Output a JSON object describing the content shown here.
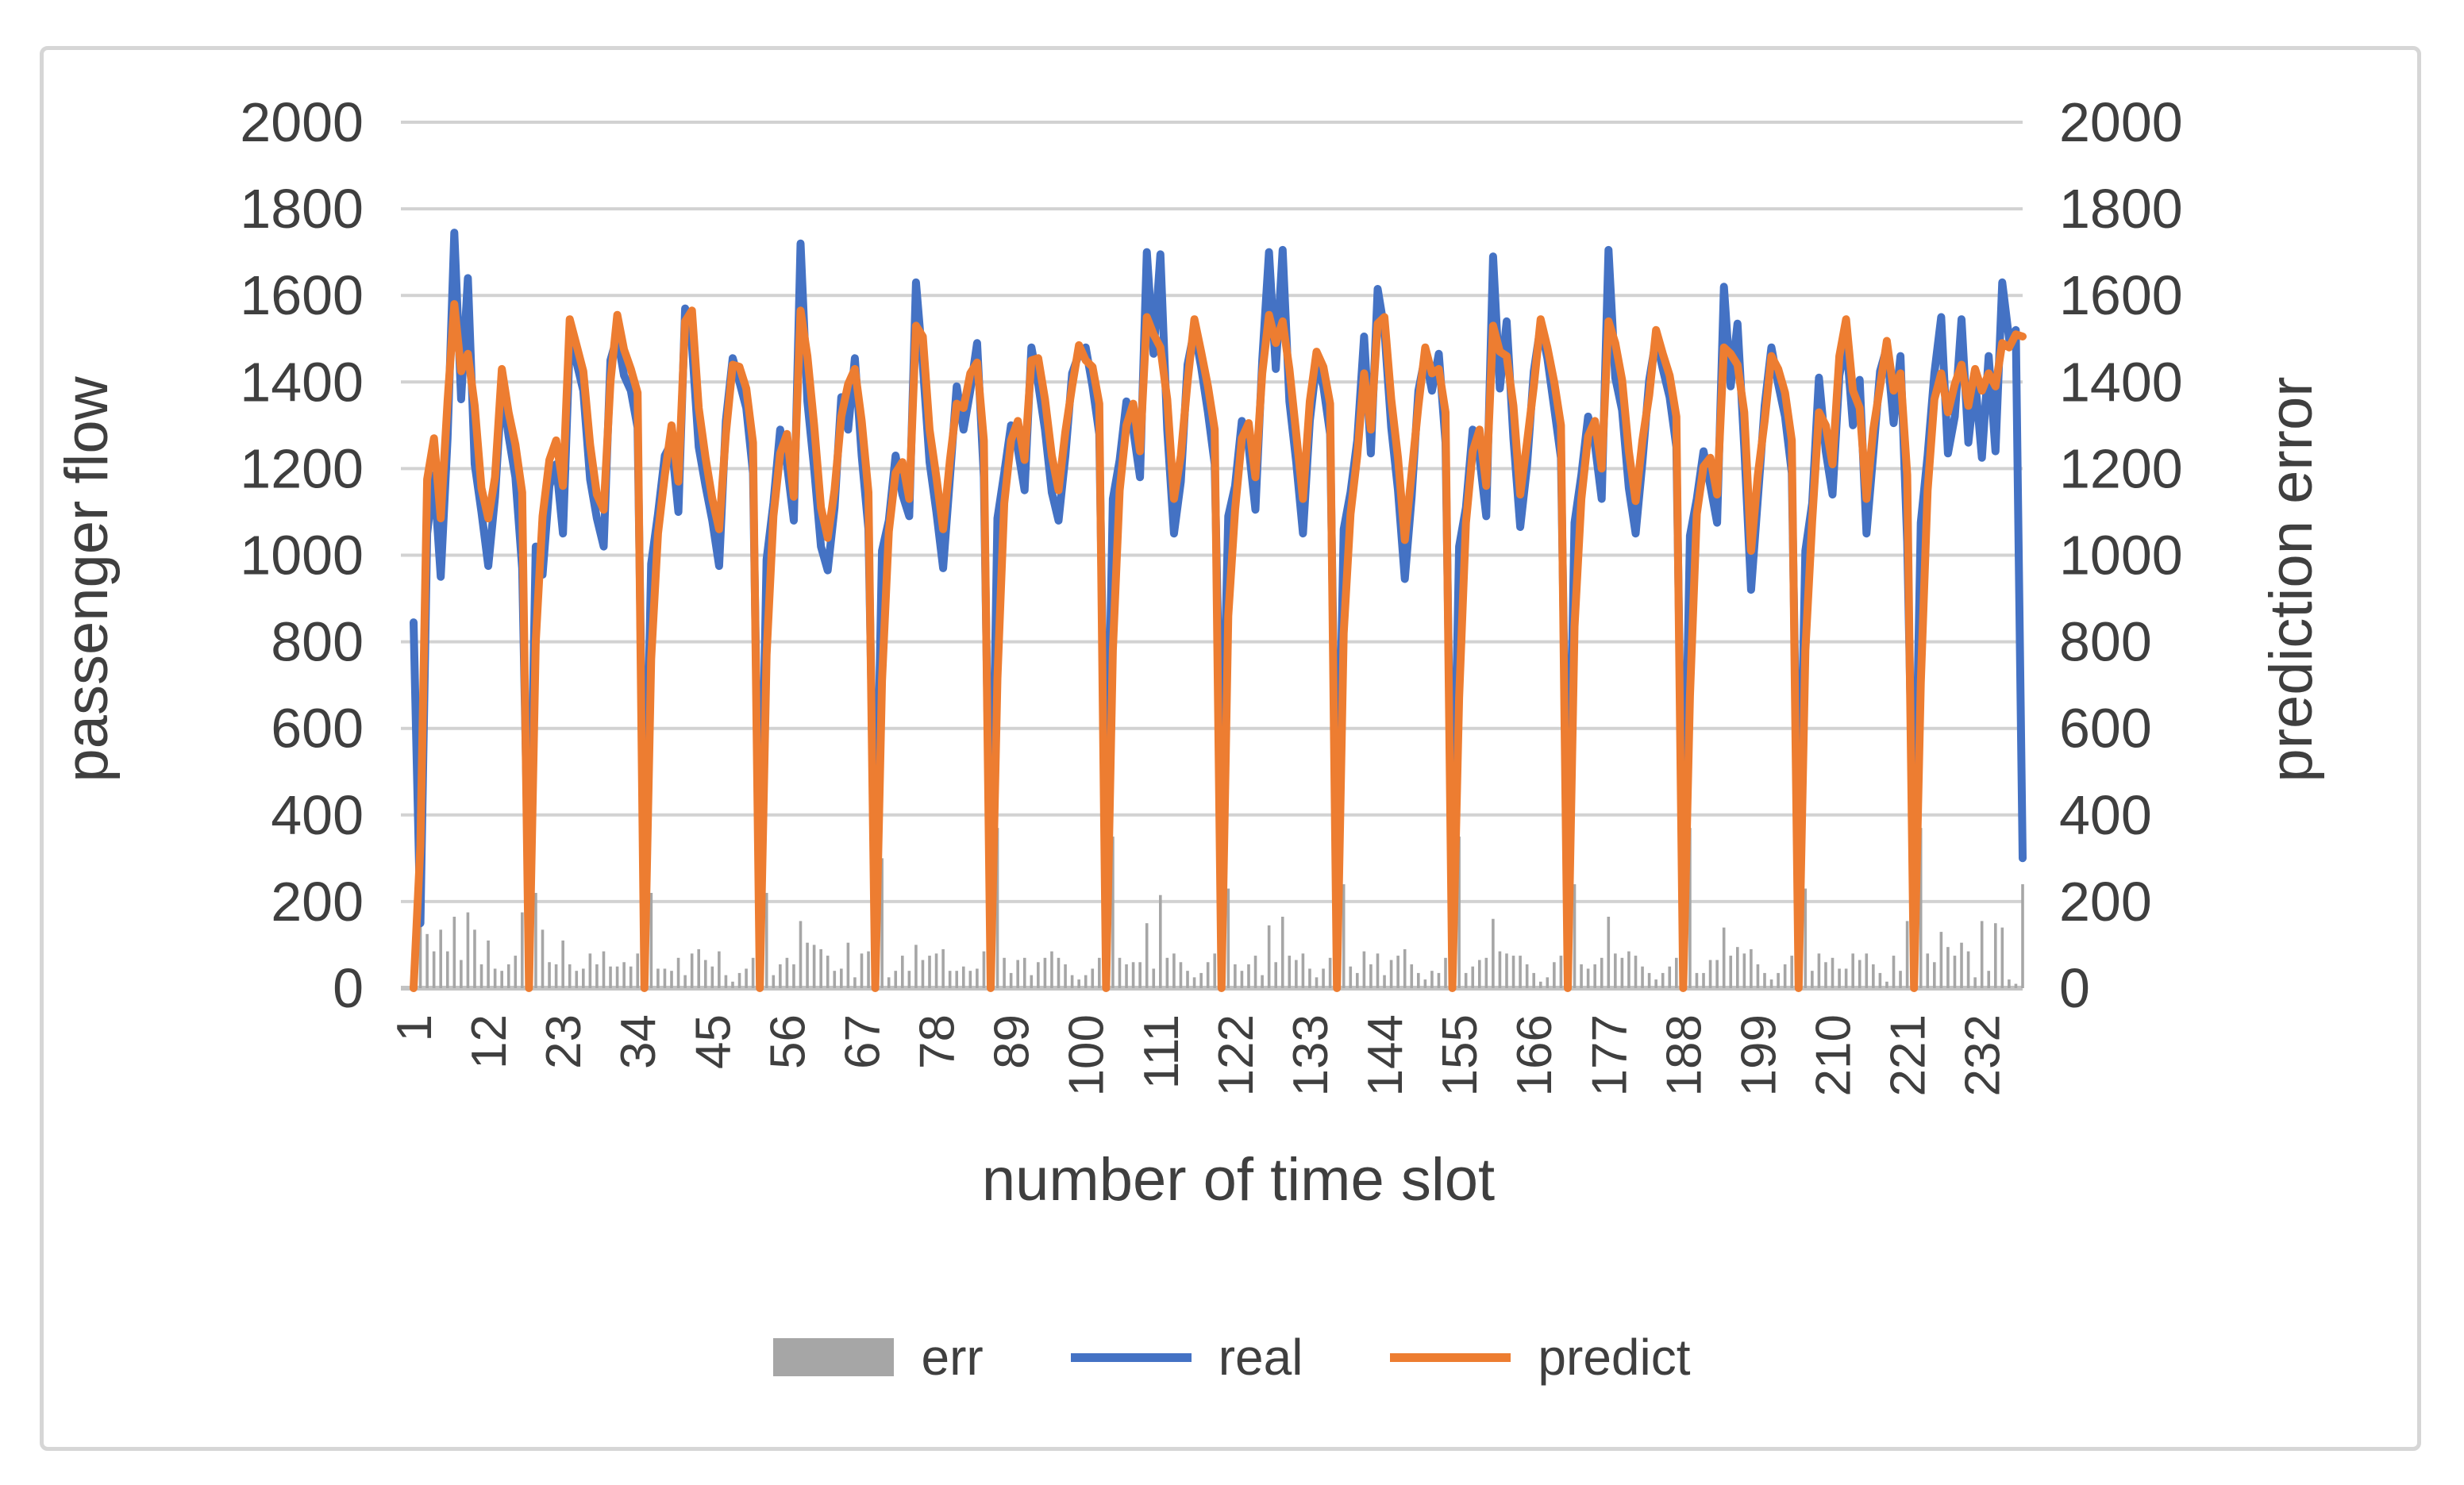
{
  "layout_colors": {
    "gridline": "#d2d2d2",
    "baseline": "#c3c3c3",
    "frame_border": "#d6d6d6",
    "text": "#3f3f3f"
  },
  "chart_data": {
    "type": "bar+line combo, dual axis",
    "title": "",
    "xlabel": "number of time slot",
    "ylabel_left": "passenger flow",
    "ylabel_right": "prediction error",
    "ylim": [
      0,
      2000
    ],
    "y_ticks": [
      0,
      200,
      400,
      600,
      800,
      1000,
      1200,
      1400,
      1600,
      1800,
      2000
    ],
    "grid": "horizontal gridlines on",
    "legend_position": "bottom center",
    "x_slot_count": 238,
    "x_tick_labels": [
      "1",
      "12",
      "23",
      "34",
      "45",
      "56",
      "67",
      "78",
      "89",
      "100",
      "111",
      "122",
      "133",
      "144",
      "155",
      "166",
      "177",
      "188",
      "199",
      "210",
      "221",
      "232"
    ],
    "x_tick_slot_interval": 11,
    "series": [
      {
        "name": "err",
        "type": "bar",
        "axis": "right",
        "color": "#a6a6a6",
        "values": [
          40,
          180,
          125,
          85,
          135,
          85,
          165,
          65,
          175,
          135,
          55,
          110,
          45,
          40,
          55,
          75,
          175,
          170,
          220,
          135,
          60,
          55,
          110,
          55,
          40,
          45,
          80,
          55,
          85,
          50,
          50,
          60,
          50,
          80,
          225,
          220,
          45,
          45,
          40,
          70,
          30,
          80,
          90,
          65,
          50,
          85,
          30,
          15,
          35,
          45,
          70,
          185,
          220,
          30,
          55,
          70,
          55,
          155,
          105,
          100,
          90,
          75,
          40,
          45,
          105,
          25,
          80,
          85,
          205,
          300,
          25,
          40,
          75,
          40,
          100,
          65,
          75,
          80,
          90,
          40,
          40,
          50,
          40,
          45,
          85,
          160,
          370,
          70,
          35,
          65,
          70,
          30,
          60,
          70,
          85,
          70,
          55,
          30,
          20,
          30,
          45,
          70,
          300,
          350,
          70,
          55,
          60,
          60,
          150,
          45,
          215,
          70,
          80,
          60,
          40,
          25,
          35,
          60,
          80,
          430,
          230,
          55,
          40,
          55,
          75,
          30,
          145,
          60,
          165,
          75,
          65,
          80,
          45,
          25,
          45,
          70,
          250,
          240,
          50,
          35,
          85,
          55,
          80,
          30,
          65,
          75,
          90,
          55,
          35,
          20,
          40,
          35,
          70,
          195,
          350,
          35,
          50,
          65,
          70,
          160,
          85,
          80,
          75,
          75,
          55,
          35,
          15,
          25,
          60,
          75,
          240,
          240,
          55,
          45,
          55,
          70,
          165,
          80,
          70,
          85,
          75,
          50,
          35,
          20,
          35,
          50,
          70,
          210,
          370,
          35,
          35,
          65,
          65,
          140,
          75,
          95,
          80,
          90,
          55,
          35,
          20,
          35,
          55,
          75,
          230,
          230,
          40,
          80,
          60,
          70,
          45,
          45,
          80,
          65,
          80,
          55,
          35,
          15,
          75,
          40,
          155,
          250,
          370,
          80,
          60,
          130,
          95,
          75,
          105,
          85,
          25,
          155,
          40,
          150,
          140,
          20,
          10,
          240
        ]
      },
      {
        "name": "real",
        "type": "line",
        "axis": "left",
        "color": "#4472c4",
        "values": [
          845,
          150,
          1050,
          1185,
          950,
          1270,
          1745,
          1360,
          1640,
          1210,
          1100,
          975,
          1135,
          1390,
          1275,
          1180,
          970,
          170,
          1020,
          955,
          1160,
          1210,
          1050,
          1490,
          1445,
          1380,
          1175,
          1085,
          1020,
          1450,
          1505,
          1415,
          1380,
          1295,
          225,
          980,
          1095,
          1230,
          1260,
          1100,
          1570,
          1485,
          1250,
          1160,
          1080,
          975,
          1310,
          1455,
          1400,
          1340,
          1190,
          185,
          990,
          1120,
          1290,
          1210,
          1080,
          1720,
          1355,
          1200,
          1020,
          965,
          1110,
          1365,
          1290,
          1455,
          1230,
          1060,
          205,
          1010,
          1080,
          1230,
          1140,
          1090,
          1630,
          1440,
          1215,
          1100,
          970,
          1180,
          1390,
          1290,
          1380,
          1490,
          1180,
          160,
          1085,
          1190,
          1300,
          1245,
          1150,
          1480,
          1395,
          1290,
          1145,
          1080,
          1230,
          1420,
          1465,
          1480,
          1390,
          1280,
          300,
          1130,
          1220,
          1355,
          1290,
          1180,
          1700,
          1465,
          1695,
          1290,
          1050,
          1170,
          1440,
          1520,
          1435,
          1330,
          1210,
          430,
          1090,
          1160,
          1310,
          1250,
          1105,
          1450,
          1700,
          1430,
          1705,
          1355,
          1215,
          1050,
          1310,
          1445,
          1390,
          1280,
          250,
          1060,
          1145,
          1265,
          1505,
          1235,
          1615,
          1520,
          1295,
          1150,
          945,
          1135,
          1380,
          1460,
          1380,
          1465,
          1260,
          195,
          1020,
          1110,
          1290,
          1225,
          1090,
          1690,
          1385,
          1540,
          1270,
          1065,
          1205,
          1425,
          1530,
          1455,
          1340,
          1225,
          240,
          1075,
          1185,
          1320,
          1255,
          1130,
          1705,
          1410,
          1335,
          1155,
          1050,
          1215,
          1405,
          1500,
          1430,
          1365,
          1250,
          210,
          1045,
          1130,
          1240,
          1160,
          1075,
          1620,
          1390,
          1535,
          1250,
          920,
          1130,
          1345,
          1480,
          1395,
          1320,
          1190,
          230,
          1010,
          1120,
          1410,
          1240,
          1140,
          1415,
          1500,
          1300,
          1405,
          1050,
          1235,
          1425,
          1480,
          1305,
          1460,
          1030,
          250,
          1075,
          1230,
          1420,
          1550,
          1235,
          1320,
          1545,
          1260,
          1405,
          1225,
          1460,
          1240,
          1630,
          1500,
          1520,
          300
        ]
      },
      {
        "name": "predict",
        "type": "line",
        "axis": "left",
        "color": "#ed7d31",
        "values": [
          0,
          330,
          1175,
          1270,
          1085,
          1355,
          1580,
          1425,
          1465,
          1345,
          1155,
          1085,
          1180,
          1430,
          1330,
          1255,
          1145,
          0,
          800,
          1090,
          1220,
          1265,
          1160,
          1545,
          1485,
          1425,
          1255,
          1140,
          1105,
          1400,
          1555,
          1475,
          1430,
          1375,
          0,
          760,
          1050,
          1185,
          1300,
          1170,
          1540,
          1565,
          1340,
          1225,
          1130,
          1060,
          1280,
          1440,
          1435,
          1385,
          1260,
          0,
          770,
          1090,
          1235,
          1280,
          1135,
          1565,
          1460,
          1300,
          1110,
          1040,
          1150,
          1320,
          1395,
          1430,
          1310,
          1145,
          0,
          710,
          1055,
          1190,
          1215,
          1130,
          1530,
          1505,
          1290,
          1180,
          1060,
          1220,
          1350,
          1340,
          1420,
          1445,
          1265,
          0,
          715,
          1120,
          1265,
          1310,
          1220,
          1450,
          1455,
          1360,
          1230,
          1150,
          1285,
          1390,
          1485,
          1450,
          1435,
          1350,
          0,
          780,
          1150,
          1300,
          1350,
          1240,
          1550,
          1510,
          1480,
          1360,
          1130,
          1230,
          1400,
          1545,
          1470,
          1390,
          1290,
          0,
          860,
          1105,
          1270,
          1305,
          1180,
          1420,
          1555,
          1490,
          1540,
          1430,
          1280,
          1130,
          1355,
          1470,
          1435,
          1350,
          0,
          820,
          1095,
          1230,
          1420,
          1290,
          1535,
          1550,
          1360,
          1225,
          1035,
          1190,
          1345,
          1480,
          1420,
          1430,
          1330,
          0,
          670,
          1075,
          1240,
          1290,
          1160,
          1530,
          1470,
          1460,
          1345,
          1140,
          1260,
          1390,
          1545,
          1480,
          1400,
          1300,
          0,
          835,
          1130,
          1275,
          1310,
          1200,
          1540,
          1490,
          1405,
          1240,
          1125,
          1265,
          1370,
          1520,
          1465,
          1415,
          1320,
          0,
          675,
          1095,
          1205,
          1225,
          1140,
          1480,
          1465,
          1440,
          1330,
          1010,
          1185,
          1310,
          1460,
          1430,
          1375,
          1265,
          0,
          780,
          1080,
          1330,
          1300,
          1210,
          1460,
          1545,
          1380,
          1340,
          1130,
          1290,
          1390,
          1495,
          1380,
          1420,
          1185,
          0,
          705,
          1150,
          1360,
          1420,
          1330,
          1395,
          1440,
          1345,
          1430,
          1380,
          1420,
          1390,
          1490,
          1480,
          1510,
          1505
        ]
      }
    ]
  }
}
